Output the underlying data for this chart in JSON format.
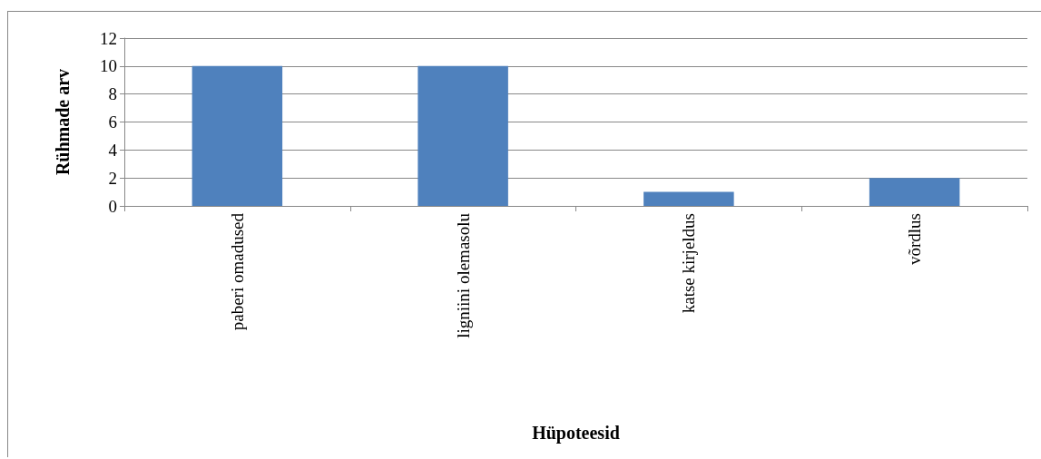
{
  "chart_data": {
    "type": "bar",
    "xlabel": "Hüpoteesid",
    "ylabel": "Rühmade arv",
    "categories": [
      "paberi omadused",
      "ligniini olemasolu",
      "katse kirjeldus",
      "võrdlus"
    ],
    "values": [
      10,
      10,
      1,
      2
    ],
    "color": "#4f81bd",
    "ylim": [
      0,
      12
    ],
    "yticks": [
      0,
      2,
      4,
      6,
      8,
      10,
      12
    ],
    "grid": "y"
  }
}
